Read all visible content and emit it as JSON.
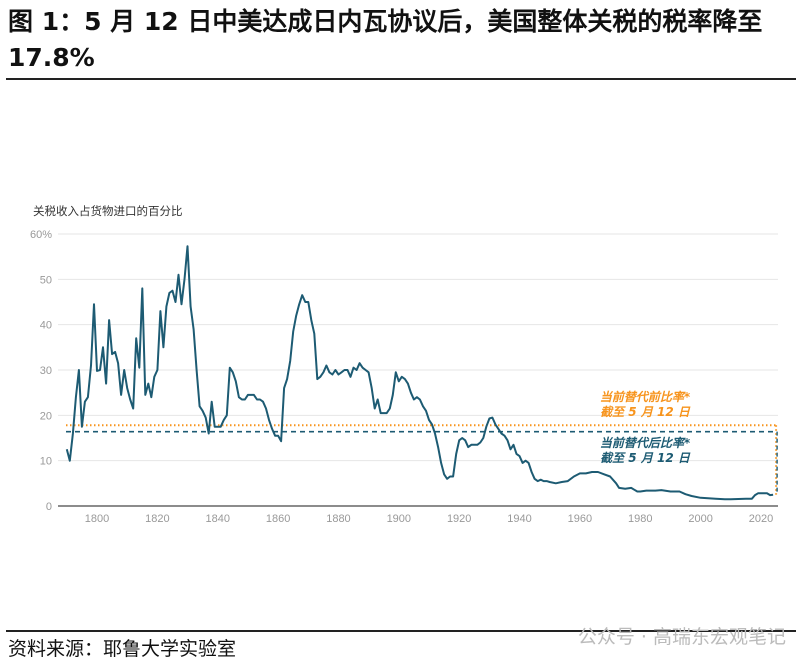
{
  "title": "图 1：5 月 12 日中美达成日内瓦协议后，美国整体关税的税率降至 17.8%",
  "footer": "资料来源：耶鲁大学实验室",
  "watermark": "公众号 · 高瑞东宏观笔记",
  "chart_data": {
    "type": "line",
    "ylabel": "关税收入占货物进口的百分比",
    "ylim": [
      0,
      60
    ],
    "yticks": [
      "0",
      "10",
      "20",
      "30",
      "40",
      "50",
      "60%"
    ],
    "yticks_values": [
      0,
      10,
      20,
      30,
      40,
      50,
      60
    ],
    "xticks": [
      "1800",
      "1820",
      "1840",
      "1860",
      "1880",
      "1900",
      "1920",
      "1940",
      "1960",
      "1980",
      "2000",
      "2020"
    ],
    "xticks_values": [
      1800,
      1820,
      1840,
      1860,
      1880,
      1900,
      1920,
      1940,
      1960,
      1980,
      2000,
      2020
    ],
    "xlim": [
      1787,
      2029
    ],
    "grid": true,
    "colors": {
      "series": "#1d5b73",
      "pre": "#f7941d",
      "post": "#1d5b73"
    },
    "series": [
      {
        "x": [
          1790,
          1791,
          1792,
          1793,
          1794,
          1795,
          1796,
          1797,
          1798,
          1799,
          1800,
          1801,
          1802,
          1803,
          1804,
          1805,
          1806,
          1807,
          1808,
          1809,
          1810,
          1811,
          1812,
          1813,
          1814,
          1815,
          1816,
          1817,
          1818,
          1819,
          1820,
          1821,
          1822,
          1823,
          1824,
          1825,
          1826,
          1827,
          1828,
          1829,
          1830,
          1831,
          1832,
          1833,
          1834,
          1835,
          1836,
          1837,
          1838,
          1839,
          1840,
          1841,
          1842,
          1843,
          1844,
          1845,
          1846,
          1847,
          1848,
          1849,
          1850,
          1851,
          1852,
          1853,
          1854,
          1855,
          1856,
          1857,
          1858,
          1859,
          1860,
          1861,
          1862,
          1863,
          1864,
          1865,
          1866,
          1867,
          1868,
          1869,
          1870,
          1871,
          1872,
          1873,
          1874,
          1875,
          1876,
          1877,
          1878,
          1879,
          1880,
          1881,
          1882,
          1883,
          1884,
          1885,
          1886,
          1887,
          1888,
          1889,
          1890,
          1891,
          1892,
          1893,
          1894,
          1895,
          1896,
          1897,
          1898,
          1899,
          1900,
          1901,
          1902,
          1903,
          1904,
          1905,
          1906,
          1907,
          1908,
          1909,
          1910,
          1911,
          1912,
          1913,
          1914,
          1915,
          1916,
          1917,
          1918,
          1919,
          1920,
          1921,
          1922,
          1923,
          1924,
          1925,
          1926,
          1927,
          1928,
          1929,
          1930,
          1931,
          1932,
          1933,
          1934,
          1935,
          1936,
          1937,
          1938,
          1939,
          1940,
          1941,
          1942,
          1943,
          1944,
          1945,
          1946,
          1947,
          1948,
          1949,
          1950,
          1952,
          1954,
          1956,
          1958,
          1960,
          1962,
          1964,
          1966,
          1968,
          1970,
          1972,
          1973,
          1975,
          1977,
          1978,
          1979,
          1980,
          1982,
          1985,
          1987,
          1990,
          1993,
          1995,
          1997,
          2000,
          2005,
          2008,
          2010,
          2015,
          2017,
          2018,
          2019,
          2020,
          2021,
          2022,
          2023,
          2024
        ],
        "y": [
          12.5,
          10,
          16,
          24,
          30,
          17.5,
          23,
          24,
          31,
          44.5,
          29.8,
          30,
          35,
          27,
          41,
          33.5,
          34,
          31.5,
          24.5,
          30,
          26,
          23.5,
          21.5,
          37,
          30.5,
          48,
          24.5,
          27,
          24,
          28.5,
          30,
          43,
          35,
          44,
          47,
          47.5,
          45,
          51,
          44.5,
          50,
          57.3,
          44,
          39,
          30,
          22,
          21,
          19.5,
          16,
          23,
          17.5,
          17.5,
          17.5,
          19,
          20,
          30.5,
          29.5,
          27.5,
          24,
          23.5,
          23.5,
          24.5,
          24.5,
          24.5,
          23.5,
          23.5,
          23,
          21.5,
          19,
          17,
          15.5,
          15.5,
          14.3,
          26,
          28,
          32,
          38.5,
          42,
          44.5,
          46.5,
          45,
          45,
          41,
          38,
          28,
          28.5,
          29.5,
          31,
          29.5,
          29,
          30,
          29,
          29.5,
          30,
          30,
          28.5,
          30.5,
          30,
          31.5,
          30.5,
          30,
          29.5,
          26,
          21.5,
          23.5,
          20.5,
          20.5,
          20.5,
          21.5,
          24.5,
          29.5,
          27.5,
          28.5,
          28,
          27,
          25,
          23.5,
          24,
          23.5,
          22,
          21,
          19,
          18,
          16,
          13,
          9.5,
          7,
          6,
          6.5,
          6.5,
          11.5,
          14.5,
          15,
          14.5,
          13,
          13.5,
          13.5,
          13.5,
          14,
          15,
          17.5,
          19.3,
          19.5,
          18,
          17,
          16,
          15.5,
          14.5,
          12.5,
          13.5,
          11.5,
          11,
          9.5,
          10,
          9.5,
          7.5,
          6,
          5.5,
          5.8,
          5.5,
          5.5,
          5.3,
          5,
          5.3,
          5.5,
          6.5,
          7.2,
          7.2,
          7.5,
          7.5,
          7,
          6.5,
          5,
          4,
          3.8,
          4,
          3.6,
          3.2,
          3.2,
          3.4,
          3.4,
          3.5,
          3.2,
          3.2,
          2.6,
          2.2,
          1.8,
          1.6,
          1.5,
          1.5,
          1.6,
          1.6,
          2.4,
          2.8,
          2.8,
          2.8,
          2.8,
          2.4,
          2.5
        ]
      }
    ],
    "reference_lines": [
      {
        "value": 17.8,
        "year": 2025,
        "style": "dotted",
        "label1": "当前替代前比率*",
        "label2": "截至 5 月 12 日"
      },
      {
        "value": 16.4,
        "year": 2025,
        "style": "dashed",
        "label1": "当前替代后比率*",
        "label2": "截至 5 月 12 日"
      }
    ]
  }
}
